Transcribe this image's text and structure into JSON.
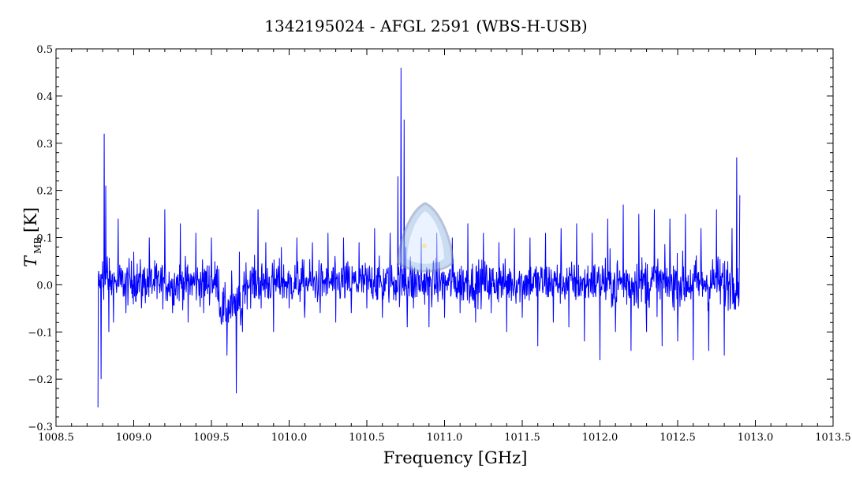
{
  "chart_data": {
    "type": "line",
    "title": "1342195024 - AFGL 2591 (WBS-H-USB)",
    "xlabel": "Frequency [GHz]",
    "ylabel_main": "T",
    "ylabel_sub": "MB",
    "ylabel_unit": "[K]",
    "xlim": [
      1008.5,
      1013.5
    ],
    "ylim": [
      -0.3,
      0.5
    ],
    "x_ticks": [
      1008.5,
      1009.0,
      1009.5,
      1010.0,
      1010.5,
      1011.0,
      1011.5,
      1012.0,
      1012.5,
      1013.0,
      1013.5
    ],
    "x_tick_labels": [
      "1008.5",
      "1009.0",
      "1009.5",
      "1010.0",
      "1010.5",
      "1011.0",
      "1011.5",
      "1012.0",
      "1012.5",
      "1013.0",
      "1013.5"
    ],
    "y_ticks": [
      -0.3,
      -0.2,
      -0.1,
      0.0,
      0.1,
      0.2,
      0.3,
      0.4,
      0.5
    ],
    "y_tick_labels": [
      "−0.3",
      "−0.2",
      "−0.1",
      "0.0",
      "0.1",
      "0.2",
      "0.3",
      "0.4",
      "0.5"
    ],
    "grid": false,
    "line_color": "#0000ff",
    "series": [
      {
        "x": [
          1008.77,
          1008.78,
          1008.79,
          1008.8,
          1008.81,
          1008.82,
          1008.83,
          1008.84,
          1008.85,
          1008.87,
          1008.9,
          1008.95,
          1009.0,
          1009.05,
          1009.1,
          1009.15,
          1009.2,
          1009.25,
          1009.3,
          1009.35,
          1009.4,
          1009.45,
          1009.5,
          1009.55,
          1009.6,
          1009.63,
          1009.66,
          1009.68,
          1009.7,
          1009.75,
          1009.8,
          1009.82,
          1009.85,
          1009.9,
          1009.95,
          1010.0,
          1010.05,
          1010.1,
          1010.15,
          1010.2,
          1010.25,
          1010.3,
          1010.35,
          1010.4,
          1010.45,
          1010.5,
          1010.55,
          1010.6,
          1010.65,
          1010.7,
          1010.72,
          1010.74,
          1010.75,
          1010.76,
          1010.78,
          1010.8,
          1010.85,
          1010.9,
          1010.95,
          1011.0,
          1011.05,
          1011.1,
          1011.15,
          1011.2,
          1011.25,
          1011.3,
          1011.35,
          1011.4,
          1011.45,
          1011.5,
          1011.55,
          1011.6,
          1011.65,
          1011.7,
          1011.75,
          1011.8,
          1011.85,
          1011.9,
          1011.95,
          1012.0,
          1012.05,
          1012.1,
          1012.15,
          1012.2,
          1012.25,
          1012.3,
          1012.35,
          1012.4,
          1012.45,
          1012.5,
          1012.55,
          1012.6,
          1012.65,
          1012.7,
          1012.75,
          1012.8,
          1012.85,
          1012.88,
          1012.9
        ],
        "y": [
          -0.26,
          0.01,
          -0.2,
          0.05,
          0.32,
          0.21,
          0.06,
          -0.1,
          0.03,
          -0.08,
          0.14,
          -0.06,
          0.07,
          -0.05,
          0.1,
          -0.03,
          0.16,
          -0.06,
          0.13,
          -0.08,
          0.11,
          -0.06,
          0.1,
          -0.04,
          -0.15,
          0.03,
          -0.23,
          0.07,
          -0.1,
          0.03,
          0.16,
          -0.05,
          0.09,
          -0.1,
          0.08,
          -0.05,
          0.1,
          -0.07,
          0.09,
          -0.06,
          0.11,
          -0.08,
          0.1,
          -0.06,
          0.09,
          -0.05,
          0.12,
          -0.07,
          0.11,
          0.23,
          0.46,
          0.35,
          0.08,
          -0.09,
          0.06,
          -0.05,
          0.1,
          -0.09,
          0.11,
          -0.07,
          0.1,
          -0.06,
          0.13,
          -0.08,
          0.11,
          -0.06,
          0.09,
          -0.1,
          0.12,
          -0.07,
          0.1,
          -0.13,
          0.11,
          -0.08,
          0.12,
          -0.09,
          0.13,
          -0.12,
          0.11,
          -0.16,
          0.14,
          -0.1,
          0.17,
          -0.14,
          0.15,
          -0.1,
          0.16,
          -0.13,
          0.14,
          -0.12,
          0.15,
          -0.16,
          0.12,
          -0.14,
          0.16,
          -0.15,
          0.12,
          0.27,
          0.19
        ]
      }
    ]
  }
}
